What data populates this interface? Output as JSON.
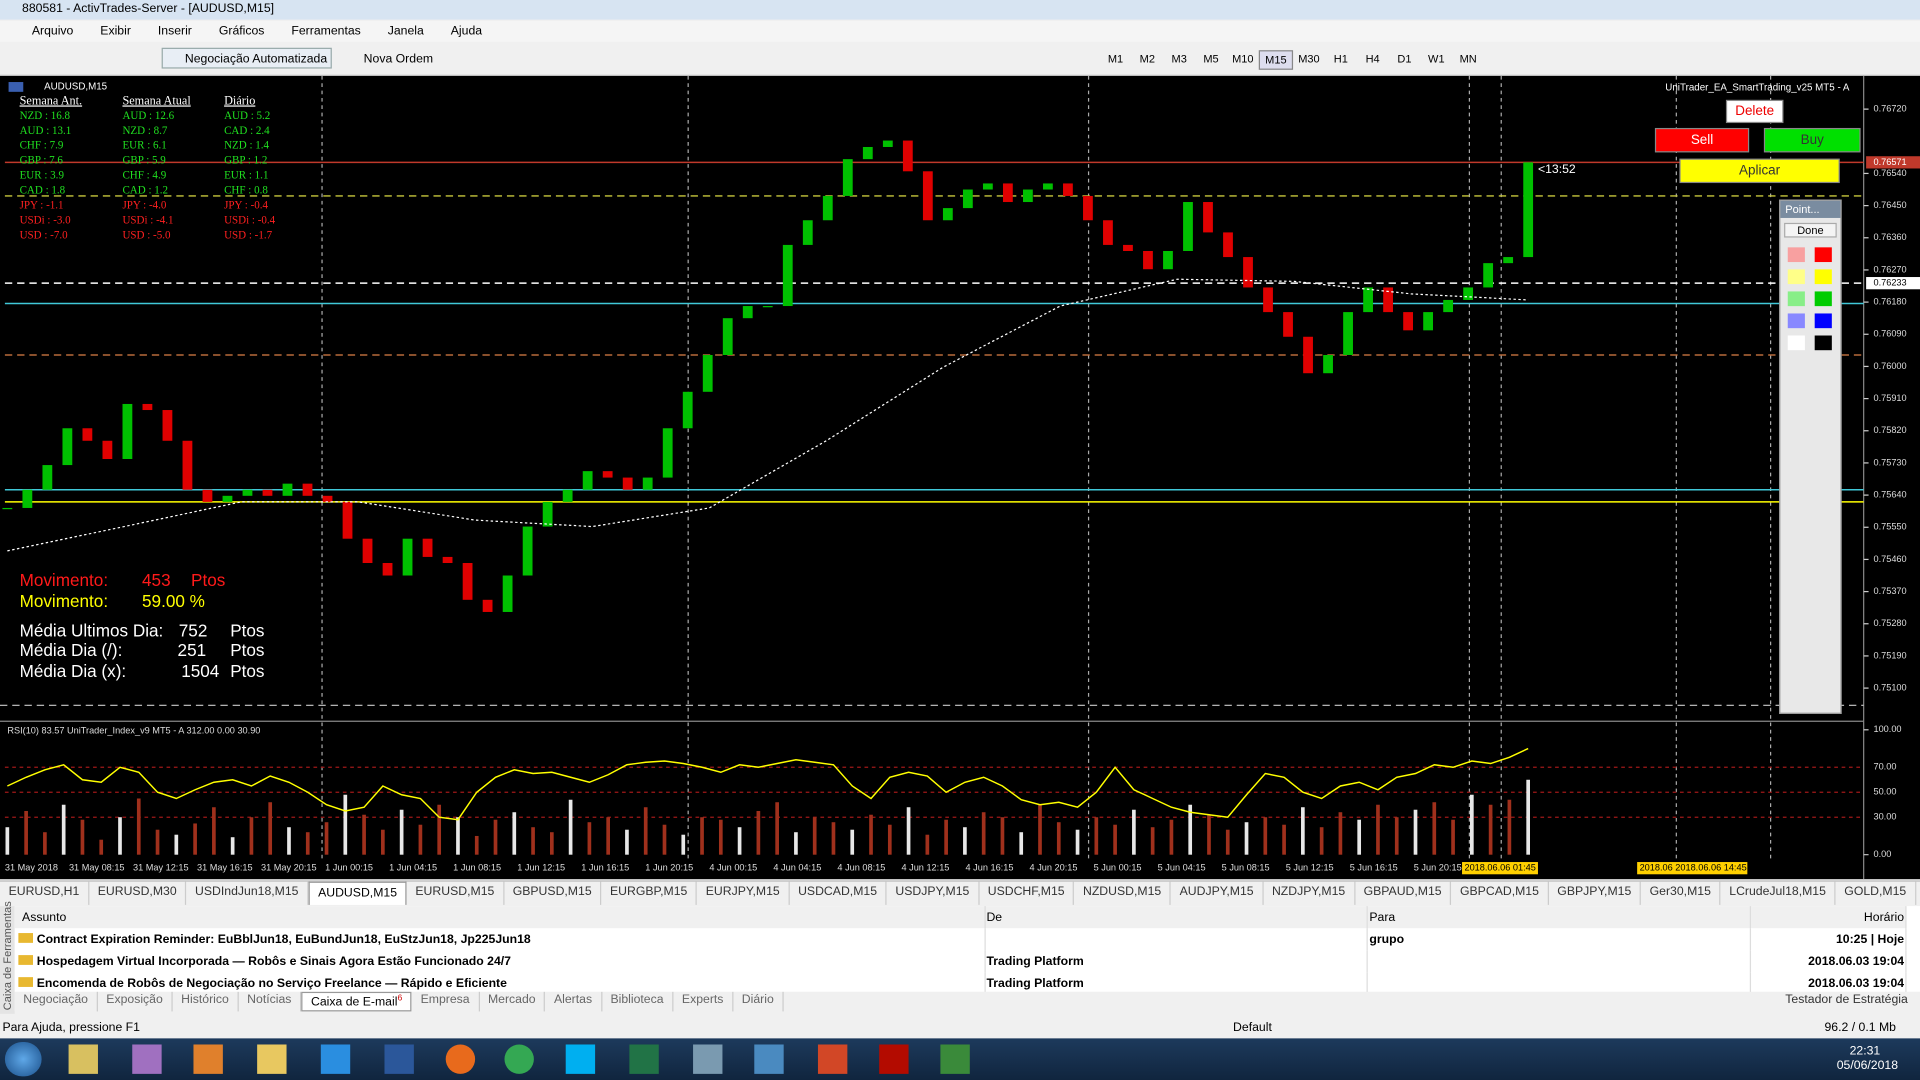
{
  "window": {
    "title": "880581 - ActivTrades-Server - [AUDUSD,M15]"
  },
  "menu": [
    "Arquivo",
    "Exibir",
    "Inserir",
    "Gráficos",
    "Ferramentas",
    "Janela",
    "Ajuda"
  ],
  "toolbar": {
    "auto_trading": "Negociação Automatizada",
    "new_order": "Nova Ordem",
    "timeframes": [
      "M1",
      "M2",
      "M3",
      "M5",
      "M10",
      "M15",
      "M30",
      "H1",
      "H4",
      "D1",
      "W1",
      "MN"
    ]
  },
  "chart": {
    "symbol": "AUDUSD,M15",
    "ea_label": "UniTrader_EA_SmartTrading_v25 MT5 - A",
    "buttons": {
      "delete": "Delete",
      "sell": "Sell",
      "buy": "Buy",
      "apply": "Aplicar"
    },
    "countdown": "<13:52",
    "price_label": 0.76571,
    "marked_level": 0.76233,
    "ylim": [
      0.75021,
      0.76806
    ],
    "yticks": [
      {
        "value": 0.7672,
        "label": "0.76720"
      },
      {
        "value": 0.7654,
        "label": "0.76540"
      },
      {
        "value": 0.7645,
        "label": "0.76450"
      },
      {
        "value": 0.7636,
        "label": "0.76360"
      },
      {
        "value": 0.7627,
        "label": "0.76270"
      },
      {
        "value": 0.7618,
        "label": "0.76180"
      },
      {
        "value": 0.7609,
        "label": "0.76090"
      },
      {
        "value": 0.76,
        "label": "0.76000"
      },
      {
        "value": 0.7591,
        "label": "0.75910"
      },
      {
        "value": 0.7582,
        "label": "0.75820"
      },
      {
        "value": 0.7573,
        "label": "0.75730"
      },
      {
        "value": 0.7564,
        "label": "0.75640"
      },
      {
        "value": 0.7555,
        "label": "0.75550"
      },
      {
        "value": 0.7546,
        "label": "0.75460"
      },
      {
        "value": 0.7537,
        "label": "0.75370"
      },
      {
        "value": 0.7528,
        "label": "0.75280"
      },
      {
        "value": 0.7519,
        "label": "0.75190"
      },
      {
        "value": 0.751,
        "label": "0.75100"
      }
    ],
    "up_color": "#00c000",
    "down_color": "#e00000",
    "closes": [
      0.75604,
      0.75655,
      0.75724,
      0.75827,
      0.75792,
      0.75741,
      0.75895,
      0.75878,
      0.75792,
      0.75655,
      0.75621,
      0.75638,
      0.75655,
      0.75638,
      0.75672,
      0.75638,
      0.75621,
      0.75518,
      0.7545,
      0.75415,
      0.75518,
      0.75467,
      0.7545,
      0.75347,
      0.75313,
      0.75415,
      0.75552,
      0.75621,
      0.75655,
      0.75707,
      0.75689,
      0.75655,
      0.75689,
      0.75827,
      0.75929,
      0.76032,
      0.76135,
      0.76169,
      0.76169,
      0.7634,
      0.76409,
      0.76477,
      0.7658,
      0.76614,
      0.76632,
      0.76546,
      0.76409,
      0.76443,
      0.76495,
      0.76512,
      0.7646,
      0.76495,
      0.76512,
      0.76477,
      0.76409,
      0.7634,
      0.76323,
      0.76272,
      0.76323,
      0.7646,
      0.76375,
      0.76306,
      0.76221,
      0.76152,
      0.76083,
      0.75981,
      0.76032,
      0.76152,
      0.76221,
      0.76152,
      0.76101,
      0.76152,
      0.76186,
      0.76221,
      0.76289,
      0.76306,
      0.76571
    ],
    "ma": {
      "color": "#ffffff",
      "values": [
        0.75484,
        0.75552,
        0.75621,
        0.75621,
        0.7557,
        0.75552,
        0.75604,
        0.75792,
        0.75998,
        0.76169,
        0.76244,
        0.76238,
        0.76203,
        0.76186
      ]
    },
    "levels": [
      {
        "price": 0.76571,
        "color": "#c0392b",
        "style": "solid"
      },
      {
        "price": 0.76477,
        "color": "#c8c83c",
        "style": "dashed"
      },
      {
        "price": 0.76233,
        "color": "#ffffff",
        "style": "dashed"
      },
      {
        "price": 0.76176,
        "color": "#40c8d8",
        "style": "solid"
      },
      {
        "price": 0.76032,
        "color": "#b86a3a",
        "style": "dashed"
      },
      {
        "price": 0.75655,
        "color": "#40c8d8",
        "style": "solid"
      },
      {
        "price": 0.75621,
        "color": "#ffff00",
        "style": "solid"
      }
    ],
    "time_labels": [
      "31 May 2018",
      "31 May 08:15",
      "31 May 12:15",
      "31 May 16:15",
      "31 May 20:15",
      "1 Jun 00:15",
      "1 Jun 04:15",
      "1 Jun 08:15",
      "1 Jun 12:15",
      "1 Jun 16:15",
      "1 Jun 20:15",
      "4 Jun 00:15",
      "4 Jun 04:15",
      "4 Jun 08:15",
      "4 Jun 12:15",
      "4 Jun 16:15",
      "4 Jun 20:15",
      "5 Jun 00:15",
      "5 Jun 04:15",
      "5 Jun 08:15",
      "5 Jun 12:15",
      "5 Jun 16:15",
      "5 Jun 20:15"
    ],
    "cursor_times": [
      "2018.06.06 01:45",
      "2018.06 2018.06.06 14:45"
    ],
    "strength": {
      "headers": [
        "Semana Ant.",
        "Semana Atual",
        "Diário"
      ],
      "rows": [
        [
          "NZD : 16.8",
          "AUD : 12.6",
          "AUD : 5.2"
        ],
        [
          "AUD : 13.1",
          "NZD : 8.7",
          "CAD : 2.4"
        ],
        [
          "CHF : 7.9",
          "EUR : 6.1",
          "NZD : 1.4"
        ],
        [
          "GBP : 7.6",
          "GBP : 5.9",
          "GBP : 1.2"
        ],
        [
          "EUR : 3.9",
          "CHF : 4.9",
          "EUR : 1.1"
        ],
        [
          "CAD : 1.8",
          "CAD : 1.2",
          "CHF : 0.8"
        ],
        [
          "JPY : -1.1",
          "JPY : -4.0",
          "JPY : -0.4"
        ],
        [
          "USDi : -3.0",
          "USDi : -4.1",
          "USDi : -0.4"
        ],
        [
          "USD : -7.0",
          "USD : -5.0",
          "USD : -1.7"
        ]
      ]
    },
    "stats": [
      [
        "Movimento:",
        "453",
        "Ptos"
      ],
      [
        "Movimento:",
        "59.00 %"
      ],
      [
        "Média Ultimos Dia:",
        "752",
        "Ptos"
      ],
      [
        "Média Dia (/):",
        "251",
        "Ptos"
      ],
      [
        "Média Dia (x):",
        "1504",
        "Ptos"
      ]
    ]
  },
  "indicator": {
    "label": "RSI(10) 83.57 UniTrader_Index_v9 MT5 - A 312.00 0.00 30.90",
    "ylim": [
      0,
      100
    ],
    "yticks": [
      {
        "value": 100,
        "label": "100.00"
      },
      {
        "value": 70,
        "label": "70.00"
      },
      {
        "value": 50,
        "label": "50.00"
      },
      {
        "value": 30,
        "label": "30.00"
      },
      {
        "value": 0,
        "label": "0.00"
      }
    ],
    "rsi": {
      "color": "#ffff00",
      "values": [
        55,
        62,
        68,
        72,
        60,
        58,
        70,
        66,
        50,
        45,
        52,
        58,
        60,
        55,
        63,
        58,
        50,
        40,
        35,
        38,
        55,
        48,
        45,
        30,
        28,
        50,
        62,
        68,
        65,
        66,
        62,
        58,
        64,
        72,
        74,
        75,
        73,
        70,
        66,
        72,
        70,
        73,
        76,
        74,
        72,
        55,
        45,
        62,
        66,
        63,
        50,
        58,
        62,
        55,
        44,
        40,
        42,
        38,
        50,
        70,
        52,
        45,
        38,
        34,
        32,
        30,
        48,
        65,
        62,
        50,
        45,
        55,
        58,
        52,
        62,
        65,
        72,
        70,
        75,
        73,
        78,
        85
      ]
    },
    "histogram": {
      "color": "#a0301c",
      "values": [
        22,
        35,
        18,
        40,
        28,
        12,
        30,
        45,
        20,
        16,
        25,
        38,
        14,
        30,
        42,
        22,
        18,
        26,
        48,
        32,
        20,
        36,
        24,
        40,
        30,
        15,
        28,
        34,
        22,
        18,
        44,
        26,
        30,
        20,
        38,
        24,
        16,
        30,
        28,
        22,
        35,
        42,
        18,
        30,
        26,
        20,
        32,
        24,
        38,
        16,
        28,
        22,
        34,
        30,
        18,
        40,
        26,
        20,
        30,
        24,
        36,
        22,
        28,
        40,
        32,
        20,
        26,
        30,
        24,
        38,
        22,
        34,
        28,
        40,
        30,
        36,
        42,
        28,
        48,
        40,
        44,
        60
      ]
    }
  },
  "point_panel": {
    "title": "Point...",
    "done": "Done"
  },
  "tabs": [
    "EURUSD,H1",
    "EURUSD,M30",
    "USDIndJun18,M15",
    "AUDUSD,M15",
    "EURUSD,M15",
    "GBPUSD,M15",
    "EURGBP,M15",
    "EURJPY,M15",
    "USDCAD,M15",
    "USDJPY,M15",
    "USDCHF,M15",
    "NZDUSD,M15",
    "AUDJPY,M15",
    "NZDJPY,M15",
    "GBPAUD,M15",
    "GBPCAD,M15",
    "GBPJPY,M15",
    "Ger30,M15",
    "LCrudeJul18,M15",
    "GOLD,M15"
  ],
  "mail": {
    "headers": [
      "Assunto",
      "De",
      "Para",
      "Horário"
    ],
    "rows": [
      [
        "Contract Expiration Reminder: EuBblJun18, EuBundJun18, EuStzJun18, Jp225Jun18",
        "",
        "grupo",
        "10:25 | Hoje"
      ],
      [
        "Hospedagem Virtual Incorporada — Robôs e Sinais Agora Estão Funcionado 24/7",
        "Trading Platform",
        "",
        "2018.06.03 19:04"
      ],
      [
        "Encomenda de Robôs de Negociação no Serviço Freelance — Rápido e Eficiente",
        "Trading Platform",
        "",
        "2018.06.03 19:04"
      ]
    ]
  },
  "bottom_tabs": [
    "Negociação",
    "Exposição",
    "Histórico",
    "Notícias",
    "Caixa de E-mail",
    "Empresa",
    "Mercado",
    "Alertas",
    "Biblioteca",
    "Experts",
    "Diário"
  ],
  "mail_count": "6",
  "tester": "Testador de Estratégia",
  "toolbox_label": "Caixa de Ferramentas",
  "status": {
    "help": "Para Ajuda, pressione F1",
    "profile": "Default",
    "memory": "96.2 / 0.1 Mb"
  },
  "taskbar": {
    "time": "22:31",
    "date": "05/06/2018"
  }
}
